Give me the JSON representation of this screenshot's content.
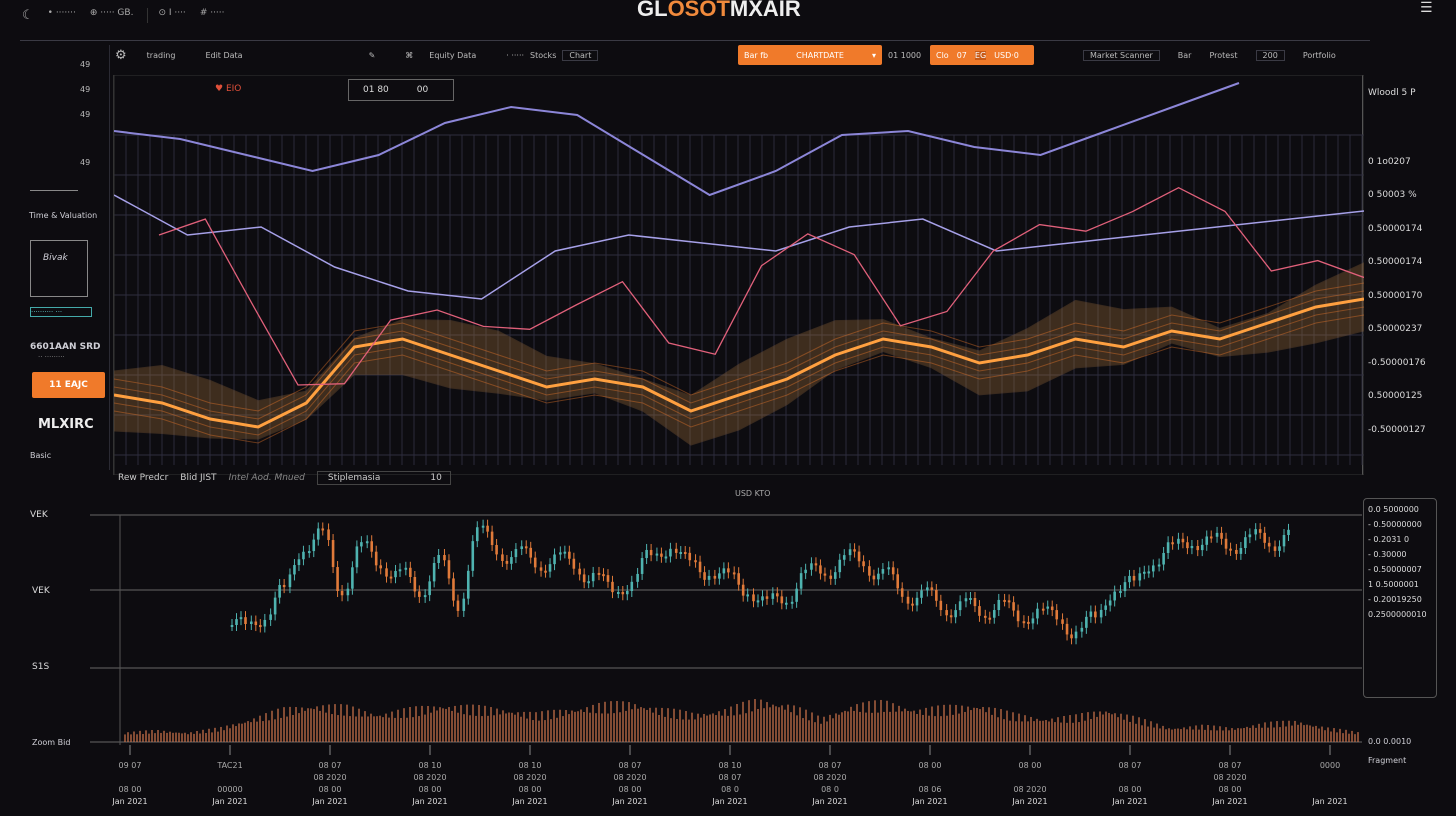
{
  "app": {
    "title_a": "GL",
    "title_b": "OSOT",
    "title_c": "MXAIR"
  },
  "topbar": {
    "left_items": [
      "• ·······",
      "⊕ ····· GB.",
      "⊙ I ····",
      "# ·····"
    ]
  },
  "sidebar": {
    "nums": [
      "49",
      "49",
      "49",
      "49"
    ],
    "label1": "Time & Valuation",
    "chart_label": "Bivak",
    "tag": "·········· ···",
    "big": "6601AAN SRD",
    "small": "·· ·········",
    "button": "11 EAJC",
    "logo": "MLXIRC",
    "bottom": "Basic"
  },
  "toolbar": {
    "t1": "trading",
    "t2": "Edit Data",
    "t3": "Equity Data",
    "t4": "· ·····",
    "t5": "Stocks",
    "t6": "Chart",
    "dropdown": "Bar fb",
    "dropdown_val": "CHARTDATE",
    "t7": "01 1000",
    "seg": [
      "Clo",
      "07",
      "EG",
      "USD·0"
    ],
    "t8": "Market Scanner",
    "t9": "Bar",
    "t10": "Protest",
    "t11": "200",
    "t12": "Portfolio"
  },
  "chart_top": {
    "indicator": "EIO",
    "range": "01  80",
    "range_btn": "00"
  },
  "y_labels": [
    "Wloodl 5 P",
    "0 1o0207",
    "0 50003 %",
    "0.50000174",
    "0.50000174",
    "0.50000170",
    "0.50000237",
    "-0.50000176",
    "0.50000125",
    "-0.50000127"
  ],
  "subbar": {
    "a": "Rew Predcr",
    "b": "Blid JIST",
    "c": "Intel Aod. Mnued",
    "d": "Stiplemasia",
    "e": "10"
  },
  "lower": {
    "center": "USD KTO",
    "labels": [
      "VEK",
      "VEK",
      "S1S"
    ],
    "vol_label": "Zoom Bid",
    "right": [
      "0.0 5000000",
      "- 0.50000000",
      "- 0.2031 0",
      "- 0.30000",
      "- 0.50000007",
      "1 0.5000001",
      "- 0.20019250",
      "0.2500000010"
    ],
    "right_bottom": "0.0 0.0010",
    "right_bottom2": "Fragment"
  },
  "x_axis": [
    [
      "09 07",
      "",
      "08 00",
      "Jan 2021"
    ],
    [
      "TAC21",
      "",
      "00000",
      "Jan 2021"
    ],
    [
      "08 07",
      "08 2020",
      "08 00",
      "Jan 2021"
    ],
    [
      "08 10",
      "08 2020",
      "08 00",
      "Jan 2021"
    ],
    [
      "08 10",
      "08 2020",
      "08 00",
      "Jan 2021"
    ],
    [
      "08 07",
      "08 2020",
      "08 00",
      "Jan 2021"
    ],
    [
      "08 10",
      "08 07",
      "08 0",
      "Jan 2021"
    ],
    [
      "08 07",
      "08 2020",
      "08 0",
      "Jan 2021"
    ],
    [
      "08 00",
      "",
      "08 06",
      "Jan 2021"
    ],
    [
      "08 00",
      "",
      "08 2020",
      "Jan 2021"
    ],
    [
      "08 07",
      "",
      "08 00",
      "Jan 2021"
    ],
    [
      "08 07",
      "08 2020",
      "08 00",
      "Jan 2021"
    ],
    [
      "0000",
      "",
      "",
      "Jan 2021"
    ]
  ],
  "colors": {
    "accent": "#f07a2a",
    "purple": "#8c86d8",
    "pink": "#e0607a",
    "bull": "#4fb3b0",
    "bear": "#e07a3a"
  },
  "series": {
    "purple1": [
      0.86,
      0.84,
      0.8,
      0.76,
      0.8,
      0.88,
      0.92,
      0.9,
      0.8,
      0.7,
      0.76,
      0.85,
      0.86,
      0.82,
      0.8,
      0.86,
      0.92,
      0.98
    ],
    "purple2": [
      0.7,
      0.6,
      0.62,
      0.52,
      0.46,
      0.44,
      0.56,
      0.6,
      0.58,
      0.56,
      0.62,
      0.64,
      0.56,
      0.58,
      0.6,
      0.62,
      0.64,
      0.66
    ],
    "pink": [
      0.6,
      0.62,
      0.4,
      0.2,
      0.22,
      0.4,
      0.44,
      0.4,
      0.38,
      0.42,
      0.46,
      0.3,
      0.28,
      0.52,
      0.62,
      0.58,
      0.4,
      0.42,
      0.55,
      0.6,
      0.58,
      0.64,
      0.72,
      0.68,
      0.54,
      0.56,
      0.5
    ],
    "orange": [
      0.2,
      0.18,
      0.14,
      0.12,
      0.18,
      0.32,
      0.34,
      0.3,
      0.26,
      0.22,
      0.24,
      0.22,
      0.16,
      0.2,
      0.24,
      0.3,
      0.34,
      0.32,
      0.28,
      0.3,
      0.34,
      0.32,
      0.36,
      0.34,
      0.38,
      0.42,
      0.44
    ],
    "closes": [
      0.25,
      0.3,
      0.5,
      0.8,
      0.9,
      0.5,
      0.8,
      0.7,
      0.6,
      0.5,
      0.7,
      0.4,
      0.9,
      0.8,
      0.75,
      0.7,
      0.72,
      0.68,
      0.6,
      0.5,
      0.55,
      0.75,
      0.8,
      0.7,
      0.62,
      0.6,
      0.5,
      0.4,
      0.45,
      0.6,
      0.65,
      0.7,
      0.72,
      0.6,
      0.5,
      0.45,
      0.4,
      0.38,
      0.35,
      0.4,
      0.3,
      0.35,
      0.3,
      0.2,
      0.3,
      0.5,
      0.55,
      0.7,
      0.8,
      0.85,
      0.84,
      0.83,
      0.85,
      0.86,
      0.88
    ],
    "volume": [
      0.2,
      0.25,
      0.2,
      0.3,
      0.5,
      0.7,
      0.8,
      0.75,
      0.6,
      0.7,
      0.8,
      0.75,
      0.7,
      0.6,
      0.7,
      0.8,
      0.85,
      0.7,
      0.6,
      0.7,
      0.9,
      0.8,
      0.5,
      0.8,
      0.85,
      0.7,
      0.75,
      0.8,
      0.6,
      0.5,
      0.55,
      0.7,
      0.5,
      0.3,
      0.35,
      0.3,
      0.4,
      0.45,
      0.3,
      0.2
    ]
  }
}
